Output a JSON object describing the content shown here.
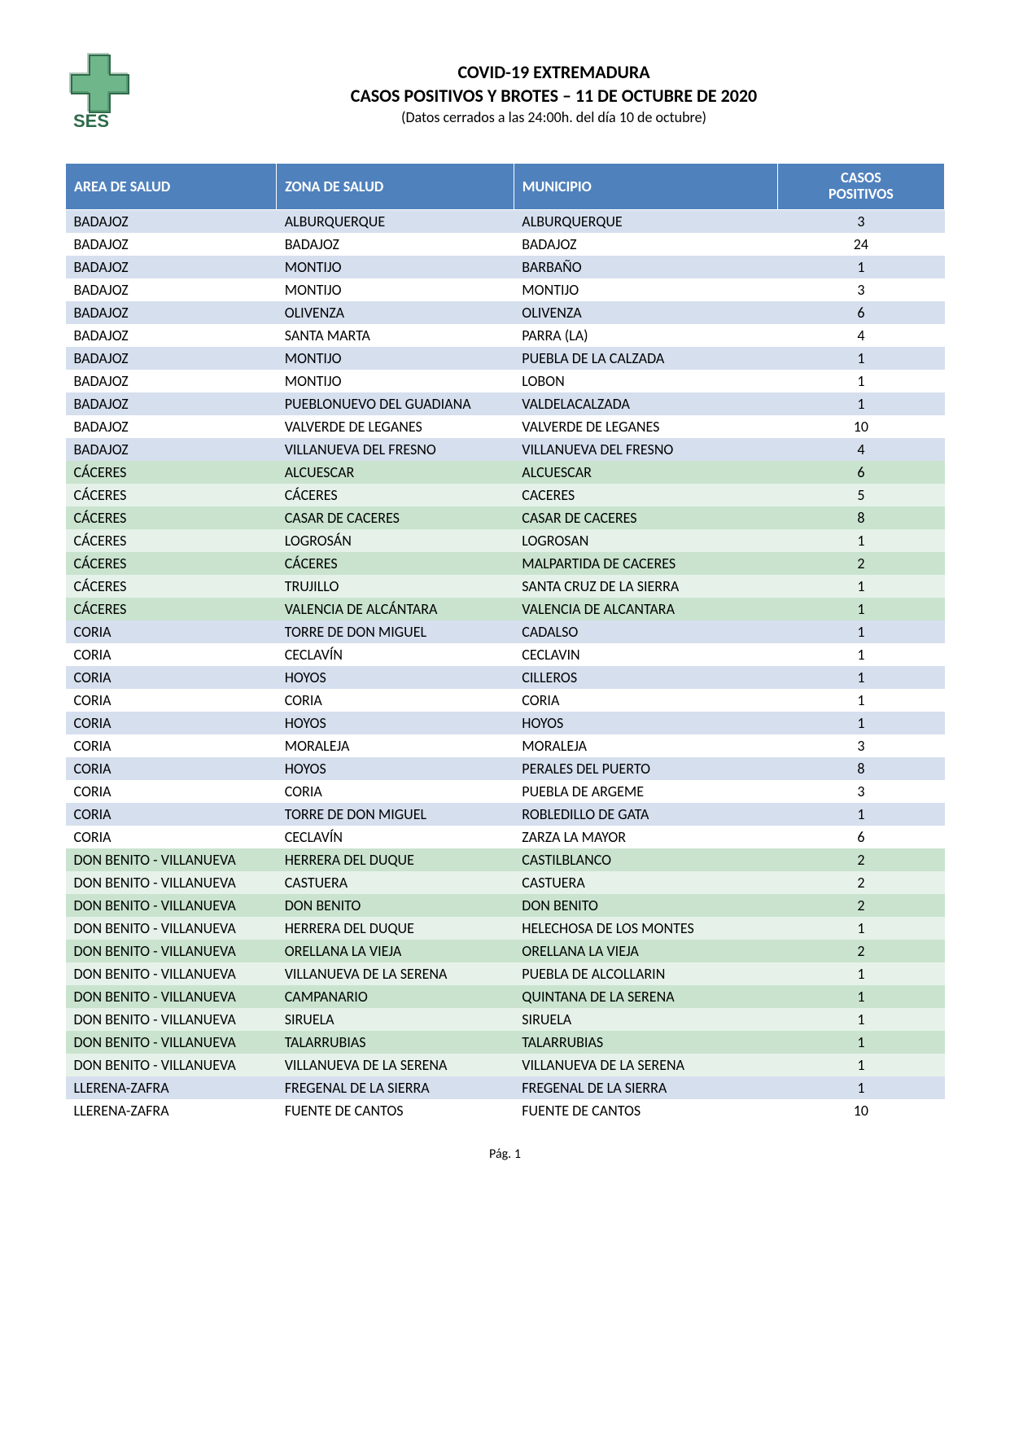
{
  "header": {
    "title_line1": "COVID-19 EXTREMADURA",
    "title_line2": "CASOS POSITIVOS Y BROTES – 11 DE OCTUBRE DE 2020",
    "subtitle": "(Datos cerrados a las 24:00h. del día 10 de octubre)",
    "logo_text": "SES"
  },
  "table": {
    "columns": [
      {
        "label": "AREA DE SALUD",
        "width": "24%",
        "align": "left"
      },
      {
        "label": "ZONA DE SALUD",
        "width": "27%",
        "align": "left"
      },
      {
        "label": "MUNICIPIO",
        "width": "30%",
        "align": "left"
      },
      {
        "label_line1": "CASOS",
        "label_line2": "POSITIVOS",
        "width": "19%",
        "align": "center",
        "class": "casos"
      }
    ],
    "header_bg": "#4f81bd",
    "header_fg": "#ffffff",
    "group_colors": {
      "BADAJOZ": {
        "even": "#d6dfee",
        "odd": "#ffffff",
        "text": "#000000"
      },
      "CÁCERES": {
        "even": "#c9e3cf",
        "odd": "#e6f2e9",
        "text": "#3d7a52"
      },
      "CORIA": {
        "even": "#d6dfee",
        "odd": "#ffffff",
        "text": "#000000"
      },
      "DON BENITO - VILLANUEVA": {
        "even": "#c9e3cf",
        "odd": "#e6f2e9",
        "text": "#3d7a52"
      },
      "LLERENA-ZAFRA": {
        "even": "#d6dfee",
        "odd": "#ffffff",
        "text": "#000000"
      }
    },
    "rows": [
      {
        "area": "BADAJOZ",
        "zona": "ALBURQUERQUE",
        "municipio": "ALBURQUERQUE",
        "casos": 3
      },
      {
        "area": "BADAJOZ",
        "zona": "BADAJOZ",
        "municipio": "BADAJOZ",
        "casos": 24
      },
      {
        "area": "BADAJOZ",
        "zona": "MONTIJO",
        "municipio": "BARBAÑO",
        "casos": 1
      },
      {
        "area": "BADAJOZ",
        "zona": "MONTIJO",
        "municipio": "MONTIJO",
        "casos": 3
      },
      {
        "area": "BADAJOZ",
        "zona": "OLIVENZA",
        "municipio": "OLIVENZA",
        "casos": 6
      },
      {
        "area": "BADAJOZ",
        "zona": "SANTA MARTA",
        "municipio": "PARRA (LA)",
        "casos": 4
      },
      {
        "area": "BADAJOZ",
        "zona": "MONTIJO",
        "municipio": "PUEBLA DE LA CALZADA",
        "casos": 1
      },
      {
        "area": "BADAJOZ",
        "zona": "MONTIJO",
        "municipio": "LOBON",
        "casos": 1
      },
      {
        "area": "BADAJOZ",
        "zona": "PUEBLONUEVO DEL GUADIANA",
        "municipio": "VALDELACALZADA",
        "casos": 1
      },
      {
        "area": "BADAJOZ",
        "zona": "VALVERDE DE LEGANES",
        "municipio": "VALVERDE DE LEGANES",
        "casos": 10
      },
      {
        "area": "BADAJOZ",
        "zona": "VILLANUEVA DEL FRESNO",
        "municipio": "VILLANUEVA DEL FRESNO",
        "casos": 4
      },
      {
        "area": "CÁCERES",
        "zona": "ALCUESCAR",
        "municipio": "ALCUESCAR",
        "casos": 6
      },
      {
        "area": "CÁCERES",
        "zona": "CÁCERES",
        "municipio": "CACERES",
        "casos": 5
      },
      {
        "area": "CÁCERES",
        "zona": "CASAR DE CACERES",
        "municipio": "CASAR DE CACERES",
        "casos": 8
      },
      {
        "area": "CÁCERES",
        "zona": "LOGROSÁN",
        "municipio": "LOGROSAN",
        "casos": 1
      },
      {
        "area": "CÁCERES",
        "zona": "CÁCERES",
        "municipio": "MALPARTIDA DE CACERES",
        "casos": 2
      },
      {
        "area": "CÁCERES",
        "zona": "TRUJILLO",
        "municipio": "SANTA CRUZ DE LA SIERRA",
        "casos": 1
      },
      {
        "area": "CÁCERES",
        "zona": "VALENCIA DE ALCÁNTARA",
        "municipio": "VALENCIA DE ALCANTARA",
        "casos": 1
      },
      {
        "area": "CORIA",
        "zona": "TORRE DE DON MIGUEL",
        "municipio": "CADALSO",
        "casos": 1
      },
      {
        "area": "CORIA",
        "zona": "CECLAVÍN",
        "municipio": "CECLAVIN",
        "casos": 1
      },
      {
        "area": "CORIA",
        "zona": "HOYOS",
        "municipio": "CILLEROS",
        "casos": 1
      },
      {
        "area": "CORIA",
        "zona": "CORIA",
        "municipio": "CORIA",
        "casos": 1
      },
      {
        "area": "CORIA",
        "zona": "HOYOS",
        "municipio": "HOYOS",
        "casos": 1
      },
      {
        "area": "CORIA",
        "zona": "MORALEJA",
        "municipio": "MORALEJA",
        "casos": 3
      },
      {
        "area": "CORIA",
        "zona": "HOYOS",
        "municipio": "PERALES DEL PUERTO",
        "casos": 8
      },
      {
        "area": "CORIA",
        "zona": "CORIA",
        "municipio": "PUEBLA DE ARGEME",
        "casos": 3
      },
      {
        "area": "CORIA",
        "zona": "TORRE DE DON MIGUEL",
        "municipio": "ROBLEDILLO DE GATA",
        "casos": 1
      },
      {
        "area": "CORIA",
        "zona": "CECLAVÍN",
        "municipio": "ZARZA LA MAYOR",
        "casos": 6
      },
      {
        "area": "DON BENITO - VILLANUEVA",
        "zona": "HERRERA DEL DUQUE",
        "municipio": "CASTILBLANCO",
        "casos": 2
      },
      {
        "area": "DON BENITO - VILLANUEVA",
        "zona": "CASTUERA",
        "municipio": "CASTUERA",
        "casos": 2
      },
      {
        "area": "DON BENITO - VILLANUEVA",
        "zona": "DON BENITO",
        "municipio": "DON BENITO",
        "casos": 2
      },
      {
        "area": "DON BENITO - VILLANUEVA",
        "zona": "HERRERA DEL DUQUE",
        "municipio": "HELECHOSA DE LOS MONTES",
        "casos": 1
      },
      {
        "area": "DON BENITO - VILLANUEVA",
        "zona": "ORELLANA LA VIEJA",
        "municipio": "ORELLANA LA VIEJA",
        "casos": 2
      },
      {
        "area": "DON BENITO - VILLANUEVA",
        "zona": "VILLANUEVA DE LA SERENA",
        "municipio": "PUEBLA DE ALCOLLARIN",
        "casos": 1
      },
      {
        "area": "DON BENITO - VILLANUEVA",
        "zona": "CAMPANARIO",
        "municipio": "QUINTANA DE LA SERENA",
        "casos": 1
      },
      {
        "area": "DON BENITO - VILLANUEVA",
        "zona": "SIRUELA",
        "municipio": "SIRUELA",
        "casos": 1
      },
      {
        "area": "DON BENITO - VILLANUEVA",
        "zona": "TALARRUBIAS",
        "municipio": "TALARRUBIAS",
        "casos": 1
      },
      {
        "area": "DON BENITO - VILLANUEVA",
        "zona": "VILLANUEVA DE LA SERENA",
        "municipio": "VILLANUEVA DE LA SERENA",
        "casos": 1
      },
      {
        "area": "LLERENA-ZAFRA",
        "zona": "FREGENAL DE LA SIERRA",
        "municipio": "FREGENAL DE LA SIERRA",
        "casos": 1
      },
      {
        "area": "LLERENA-ZAFRA",
        "zona": "FUENTE DE CANTOS",
        "municipio": "FUENTE DE CANTOS",
        "casos": 10
      }
    ]
  },
  "footer": {
    "page_label": "Pág. 1"
  }
}
